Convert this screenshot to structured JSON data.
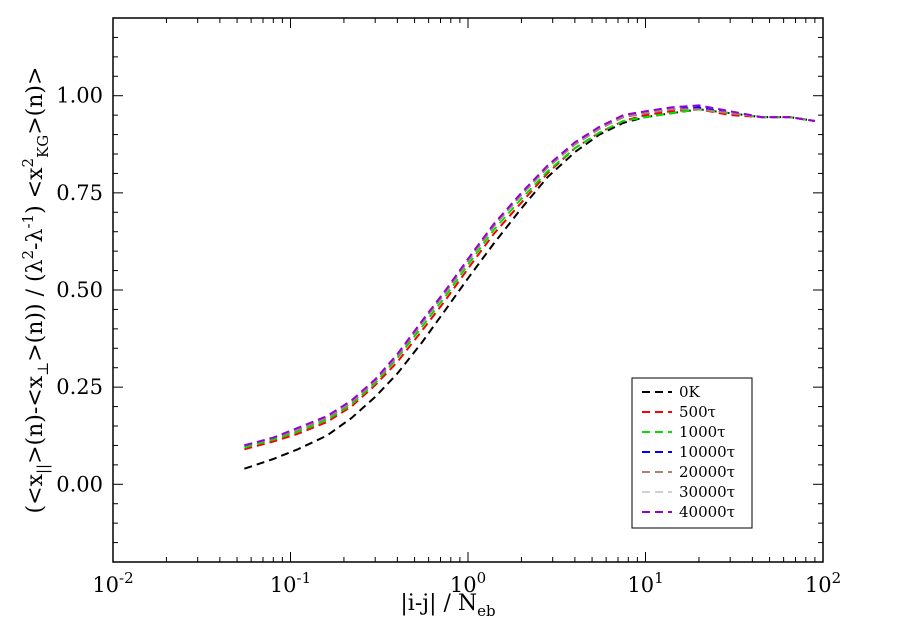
{
  "chart_data": {
    "type": "line",
    "x_scale": "log",
    "xlim": [
      0.01,
      100
    ],
    "ylim": [
      -0.2,
      1.2
    ],
    "xlabel": "|i-j| / N_eb",
    "ylabel": "(<x_||>(n)-<x_⊥>(n)) / (λ^2-λ^-1) <x^2_KG>(n)>",
    "x_tick_labels": [
      {
        "base": "10",
        "exp": "-2"
      },
      {
        "base": "10",
        "exp": "-1"
      },
      {
        "base": "10",
        "exp": "0"
      },
      {
        "base": "10",
        "exp": "1"
      },
      {
        "base": "10",
        "exp": "2"
      }
    ],
    "x_tick_values": [
      0.01,
      0.1,
      1,
      10,
      100
    ],
    "y_tick_labels": [
      "0.00",
      "0.25",
      "0.50",
      "0.75",
      "1.00"
    ],
    "y_tick_values": [
      0.0,
      0.25,
      0.5,
      0.75,
      1.0
    ],
    "legend_position": "bottom-right",
    "x": [
      0.055,
      0.08,
      0.11,
      0.16,
      0.22,
      0.3,
      0.4,
      0.55,
      0.75,
      1.0,
      1.4,
      2.0,
      2.8,
      4.0,
      5.5,
      7.5,
      10,
      14,
      20,
      30,
      45,
      65,
      90
    ],
    "series": [
      {
        "name": "0K",
        "color": "#000000",
        "values": [
          0.04,
          0.065,
          0.09,
          0.125,
          0.17,
          0.225,
          0.285,
          0.365,
          0.45,
          0.53,
          0.62,
          0.71,
          0.79,
          0.855,
          0.9,
          0.93,
          0.945,
          0.955,
          0.965,
          0.955,
          0.945,
          0.945,
          0.935
        ]
      },
      {
        "name": "500τ",
        "color": "#ff0000",
        "values": [
          0.09,
          0.11,
          0.13,
          0.16,
          0.2,
          0.255,
          0.315,
          0.395,
          0.475,
          0.555,
          0.645,
          0.725,
          0.8,
          0.865,
          0.905,
          0.935,
          0.95,
          0.96,
          0.965,
          0.95,
          0.945,
          0.945,
          0.935
        ]
      },
      {
        "name": "1000τ",
        "color": "#00e000",
        "values": [
          0.095,
          0.115,
          0.135,
          0.165,
          0.205,
          0.26,
          0.325,
          0.405,
          0.485,
          0.565,
          0.655,
          0.735,
          0.805,
          0.865,
          0.905,
          0.935,
          0.945,
          0.955,
          0.965,
          0.955,
          0.945,
          0.945,
          0.935
        ]
      },
      {
        "name": "10000τ",
        "color": "#0000ff",
        "values": [
          0.1,
          0.12,
          0.14,
          0.17,
          0.21,
          0.265,
          0.33,
          0.415,
          0.495,
          0.575,
          0.665,
          0.745,
          0.815,
          0.875,
          0.915,
          0.945,
          0.955,
          0.965,
          0.97,
          0.955,
          0.945,
          0.945,
          0.935
        ]
      },
      {
        "name": "20000τ",
        "color": "#b08070",
        "values": [
          0.1,
          0.12,
          0.14,
          0.17,
          0.21,
          0.265,
          0.33,
          0.415,
          0.495,
          0.575,
          0.665,
          0.745,
          0.815,
          0.875,
          0.915,
          0.945,
          0.955,
          0.965,
          0.965,
          0.955,
          0.945,
          0.945,
          0.935
        ]
      },
      {
        "name": "30000τ",
        "color": "#d0d0d0",
        "values": [
          0.1,
          0.12,
          0.145,
          0.175,
          0.215,
          0.27,
          0.335,
          0.42,
          0.5,
          0.58,
          0.67,
          0.75,
          0.82,
          0.88,
          0.92,
          0.95,
          0.96,
          0.97,
          0.975,
          0.96,
          0.945,
          0.945,
          0.935
        ]
      },
      {
        "name": "40000τ",
        "color": "#9400d3",
        "values": [
          0.1,
          0.12,
          0.145,
          0.175,
          0.215,
          0.27,
          0.335,
          0.42,
          0.5,
          0.58,
          0.67,
          0.75,
          0.82,
          0.88,
          0.92,
          0.95,
          0.96,
          0.97,
          0.975,
          0.96,
          0.945,
          0.945,
          0.935
        ]
      }
    ]
  }
}
